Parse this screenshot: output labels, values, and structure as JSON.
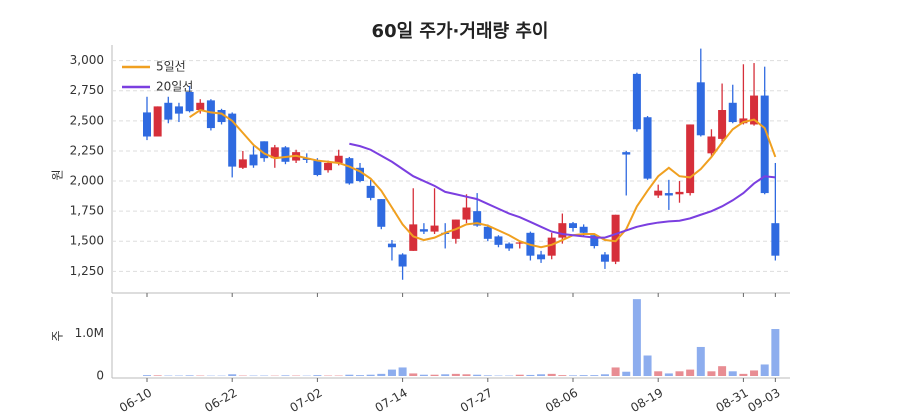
{
  "chart_data": [
    {
      "type": "candlestick",
      "title": "60일 주가·거래량 추이",
      "y_label": "원",
      "up_color": "#d62f3a",
      "down_color": "#2f6ae0",
      "legend": "top-left",
      "grid": true,
      "ylim": [
        1070,
        3130
      ],
      "yticks": [
        {
          "value": 1250,
          "label": "1,250"
        },
        {
          "value": 1500,
          "label": "1,500"
        },
        {
          "value": 1750,
          "label": "1,750"
        },
        {
          "value": 2000,
          "label": "2,000"
        },
        {
          "value": 2250,
          "label": "2,250"
        },
        {
          "value": 2500,
          "label": "2,500"
        },
        {
          "value": 2750,
          "label": "2,750"
        },
        {
          "value": 3000,
          "label": "3,000"
        }
      ],
      "open": [
        2570,
        2370,
        2650,
        2620,
        2740,
        2590,
        2670,
        2590,
        2560,
        2110,
        2220,
        2330,
        2190,
        2280,
        2170,
        2190,
        2170,
        2090,
        2150,
        2190,
        2110,
        1960,
        1850,
        1480,
        1390,
        1420,
        1600,
        1580,
        1570,
        1520,
        1680,
        1750,
        1620,
        1540,
        1480,
        1480,
        1570,
        1390,
        1380,
        1530,
        1650,
        1620,
        1550,
        1390,
        1330,
        2240,
        2890,
        2530,
        1880,
        1900,
        1890,
        1900,
        2820,
        2230,
        2350,
        2650,
        2480,
        2470,
        2710,
        1650
      ],
      "high": [
        2700,
        2620,
        2700,
        2650,
        2790,
        2680,
        2680,
        2600,
        2570,
        2250,
        2290,
        2330,
        2300,
        2290,
        2260,
        2230,
        2190,
        2170,
        2260,
        2200,
        2150,
        2010,
        1850,
        1510,
        1400,
        1940,
        1650,
        1940,
        1650,
        1680,
        1890,
        1900,
        1640,
        1550,
        1490,
        1500,
        1580,
        1420,
        1570,
        1730,
        1660,
        1640,
        1560,
        1410,
        1720,
        2250,
        2900,
        2540,
        1970,
        2010,
        2000,
        2470,
        3100,
        2430,
        2810,
        2800,
        2970,
        2980,
        2950,
        2150
      ],
      "low": [
        2340,
        2370,
        2480,
        2490,
        2570,
        2560,
        2420,
        2470,
        2030,
        2100,
        2110,
        2160,
        2110,
        2140,
        2150,
        2150,
        2040,
        2070,
        2130,
        1970,
        1990,
        1840,
        1600,
        1340,
        1180,
        1420,
        1560,
        1560,
        1440,
        1480,
        1650,
        1620,
        1500,
        1450,
        1420,
        1440,
        1340,
        1320,
        1350,
        1480,
        1580,
        1540,
        1440,
        1270,
        1310,
        1880,
        2410,
        2010,
        1860,
        1760,
        1820,
        1880,
        2370,
        2210,
        2310,
        2480,
        2470,
        2460,
        1890,
        1340
      ],
      "close": [
        2370,
        2620,
        2510,
        2560,
        2580,
        2650,
        2440,
        2490,
        2120,
        2180,
        2130,
        2190,
        2280,
        2160,
        2240,
        2175,
        2050,
        2150,
        2210,
        1980,
        2000,
        1860,
        1620,
        1450,
        1290,
        1640,
        1580,
        1630,
        1560,
        1680,
        1780,
        1630,
        1520,
        1470,
        1440,
        1490,
        1380,
        1350,
        1530,
        1650,
        1610,
        1570,
        1460,
        1330,
        1720,
        2220,
        2430,
        2020,
        1920,
        1880,
        1910,
        2470,
        2380,
        2370,
        2590,
        2490,
        2520,
        2710,
        1900,
        1380
      ],
      "series": [
        {
          "name": "5일선",
          "color": "#f0a020",
          "values": [
            null,
            null,
            null,
            null,
            2530,
            2590,
            2570,
            2560,
            2500,
            2400,
            2300,
            2230,
            2190,
            2200,
            2210,
            2190,
            2170,
            2160,
            2150,
            2120,
            2080,
            2020,
            1920,
            1780,
            1640,
            1540,
            1510,
            1530,
            1570,
            1600,
            1640,
            1650,
            1630,
            1590,
            1550,
            1500,
            1470,
            1450,
            1470,
            1510,
            1550,
            1560,
            1560,
            1510,
            1500,
            1600,
            1790,
            1920,
            2040,
            2110,
            2040,
            2030,
            2100,
            2200,
            2320,
            2430,
            2490,
            2510,
            2440,
            2200
          ]
        },
        {
          "name": "20일선",
          "color": "#7b3fe0",
          "values": [
            null,
            null,
            null,
            null,
            null,
            null,
            null,
            null,
            null,
            null,
            null,
            null,
            null,
            null,
            null,
            null,
            null,
            null,
            null,
            2310,
            2290,
            2260,
            2210,
            2160,
            2100,
            2040,
            2000,
            1960,
            1910,
            1890,
            1870,
            1850,
            1810,
            1770,
            1730,
            1700,
            1660,
            1620,
            1580,
            1560,
            1550,
            1540,
            1530,
            1530,
            1560,
            1590,
            1620,
            1640,
            1655,
            1665,
            1670,
            1690,
            1720,
            1750,
            1790,
            1840,
            1900,
            1980,
            2040,
            2030
          ]
        }
      ]
    },
    {
      "type": "bar",
      "y_label": "주",
      "ylim": [
        0,
        1850000
      ],
      "yticks": [
        0,
        {
          "value": 1000000,
          "label": "1.0M"
        }
      ],
      "categories": [
        "06-10",
        null,
        null,
        null,
        null,
        null,
        null,
        null,
        "06-22",
        null,
        null,
        null,
        null,
        null,
        null,
        null,
        "07-02",
        null,
        null,
        null,
        null,
        null,
        null,
        null,
        "07-14",
        null,
        null,
        null,
        null,
        null,
        null,
        null,
        "07-27",
        null,
        null,
        null,
        null,
        null,
        null,
        null,
        "08-06",
        null,
        null,
        null,
        null,
        null,
        null,
        null,
        "08-19",
        null,
        null,
        null,
        null,
        null,
        null,
        null,
        "08-31",
        null,
        null,
        "09-03"
      ],
      "values": [
        20000,
        15000,
        10000,
        10000,
        15000,
        10000,
        8000,
        8000,
        40000,
        10000,
        10000,
        10000,
        8000,
        15000,
        10000,
        8000,
        20000,
        10000,
        10000,
        30000,
        20000,
        30000,
        50000,
        150000,
        200000,
        60000,
        30000,
        30000,
        40000,
        50000,
        40000,
        30000,
        15000,
        10000,
        10000,
        30000,
        25000,
        40000,
        50000,
        20000,
        15000,
        20000,
        20000,
        40000,
        200000,
        100000,
        1800000,
        480000,
        110000,
        60000,
        110000,
        150000,
        680000,
        110000,
        230000,
        110000,
        50000,
        130000,
        270000,
        1100000
      ]
    }
  ]
}
